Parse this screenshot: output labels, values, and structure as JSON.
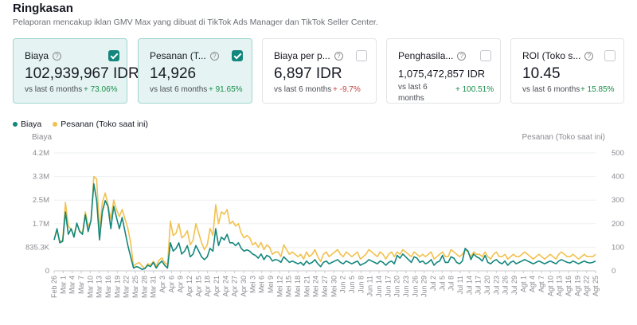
{
  "header": {
    "title": "Ringkasan",
    "subtitle": "Pelaporan mencakup iklan GMV Max yang dibuat di TikTok Ads Manager dan TikTok Seller Center."
  },
  "cards": [
    {
      "label": "Biaya",
      "value": "102,939,967 IDR",
      "compare": "vs last 6 months",
      "delta": "+ 73.06%",
      "trend": "up",
      "checked": true
    },
    {
      "label": "Pesanan (T...",
      "value": "14,926",
      "compare": "vs last 6 months",
      "delta": "+ 91.65%",
      "trend": "up",
      "checked": true
    },
    {
      "label": "Biaya per p...",
      "value": "6,897 IDR",
      "compare": "vs last 6 months",
      "delta": "+ -9.7%",
      "trend": "down",
      "checked": false
    },
    {
      "label": "Penghasila...",
      "value": "1,075,472,857 IDR",
      "compare": "vs last 6 months",
      "delta": "+ 100.51%",
      "trend": "up",
      "checked": false
    },
    {
      "label": "ROI (Toko s...",
      "value": "10.45",
      "compare": "vs last 6 months",
      "delta": "+ 15.85%",
      "trend": "up",
      "checked": false
    }
  ],
  "legend": {
    "series1": "Biaya",
    "series2": "Pesanan (Toko saat ini)"
  },
  "colors": {
    "biaya": "#13877c",
    "pesanan": "#f2c14e",
    "accent": "#13877c"
  },
  "chart_data": {
    "type": "line",
    "ylabel_left": "Biaya",
    "ylabel_right": "Pesanan (Toko saat ini)",
    "yticks_left": [
      "0",
      "835.3K",
      "1.7M",
      "2.5M",
      "3.3M",
      "4.2M"
    ],
    "yticks_right": [
      "0",
      "100",
      "200",
      "300",
      "400",
      "500"
    ],
    "ylim_left": [
      0,
      4200000
    ],
    "ylim_right": [
      0,
      500
    ],
    "x_tick_labels": [
      "Feb 26",
      "Mar 1",
      "Mar 4",
      "Mar 7",
      "Mar 10",
      "Mar 13",
      "Mar 16",
      "Mar 19",
      "Mar 22",
      "Mar 25",
      "Mar 28",
      "Mar 31",
      "Apr 3",
      "Apr 6",
      "Apr 9",
      "Apr 12",
      "Apr 15",
      "Apr 18",
      "Apr 21",
      "Apr 24",
      "Apr 27",
      "Apr 30",
      "Mei 3",
      "Mei 6",
      "Mei 9",
      "Mei 12",
      "Mei 15",
      "Mei 18",
      "Mei 21",
      "Mei 24",
      "Mei 27",
      "Mei 30",
      "Jun 2",
      "Jun 5",
      "Jun 8",
      "Jun 11",
      "Jun 14",
      "Jun 17",
      "Jun 20",
      "Jun 23",
      "Jun 26",
      "Jun 29",
      "Jul 2",
      "Jul 5",
      "Jul 8",
      "Jul 11",
      "Jul 14",
      "Jul 17",
      "Jul 20",
      "Jul 23",
      "Jul 26",
      "Jul 29",
      "Agt 1",
      "Agt 4",
      "Agt 7",
      "Agt 10",
      "Agt 13",
      "Agt 16",
      "Agt 19",
      "Agt 22",
      "Agt 25"
    ],
    "grid": true,
    "series": [
      {
        "name": "Biaya",
        "axis": "left",
        "values": [
          1100000,
          1500000,
          1000000,
          1050000,
          2100000,
          1300000,
          1500000,
          1200000,
          1700000,
          1400000,
          1300000,
          2000000,
          1400000,
          1800000,
          3100000,
          2500000,
          1100000,
          2100000,
          2500000,
          2300000,
          1500000,
          2300000,
          1900000,
          1500000,
          1900000,
          1400000,
          900000,
          500000,
          100000,
          150000,
          120000,
          50000,
          80000,
          200000,
          150000,
          300000,
          100000,
          250000,
          350000,
          200000,
          100000,
          1000000,
          700000,
          800000,
          1000000,
          600000,
          700000,
          900000,
          500000,
          600000,
          900000,
          700000,
          500000,
          400000,
          500000,
          800000,
          700000,
          1500000,
          900000,
          1200000,
          1100000,
          1300000,
          1000000,
          1000000,
          900000,
          1000000,
          800000,
          700000,
          750000,
          700000,
          600000,
          550000,
          450000,
          600000,
          400000,
          550000,
          500000,
          350000,
          400000,
          380000,
          300000,
          500000,
          400000,
          300000,
          350000,
          300000,
          250000,
          300000,
          200000,
          350000,
          250000,
          300000,
          400000,
          250000,
          150000,
          300000,
          350000,
          250000,
          300000,
          350000,
          400000,
          300000,
          250000,
          350000,
          300000,
          250000,
          300000,
          350000,
          200000,
          250000,
          300000,
          400000,
          350000,
          300000,
          250000,
          350000,
          300000,
          200000,
          300000,
          350000,
          250000,
          550000,
          450000,
          600000,
          500000,
          400000,
          300000,
          500000,
          450000,
          300000,
          350000,
          250000,
          300000,
          400000,
          200000,
          300000,
          350000,
          550000,
          300000,
          300000,
          500000,
          450000,
          300000,
          250000,
          350000,
          800000,
          700000,
          400000,
          600000,
          500000,
          450000,
          350000,
          550000,
          300000,
          250000,
          350000,
          400000,
          300000,
          250000,
          350000,
          200000,
          300000,
          350000,
          250000,
          300000,
          350000,
          400000,
          350000,
          300000,
          250000,
          300000,
          350000,
          300000,
          250000,
          300000,
          350000,
          300000,
          250000,
          350000,
          400000,
          350000,
          300000,
          280000,
          350000,
          300000,
          250000,
          300000,
          350000,
          300000,
          280000,
          300000,
          350000
        ]
      },
      {
        "name": "Pesanan (Toko saat ini)",
        "axis": "right",
        "values": [
          135,
          170,
          125,
          130,
          290,
          190,
          175,
          150,
          200,
          170,
          160,
          250,
          190,
          210,
          400,
          390,
          170,
          290,
          330,
          280,
          220,
          300,
          260,
          230,
          260,
          220,
          180,
          120,
          20,
          30,
          35,
          20,
          10,
          30,
          25,
          40,
          20,
          45,
          55,
          35,
          25,
          210,
          150,
          160,
          200,
          140,
          150,
          170,
          110,
          130,
          200,
          160,
          120,
          90,
          110,
          180,
          150,
          280,
          200,
          250,
          240,
          260,
          200,
          210,
          190,
          200,
          160,
          140,
          150,
          140,
          110,
          120,
          100,
          120,
          90,
          110,
          100,
          70,
          80,
          80,
          60,
          110,
          90,
          70,
          80,
          70,
          60,
          70,
          50,
          80,
          60,
          70,
          90,
          60,
          40,
          70,
          80,
          60,
          70,
          80,
          90,
          70,
          60,
          80,
          70,
          60,
          70,
          80,
          50,
          60,
          70,
          90,
          80,
          70,
          60,
          80,
          70,
          50,
          70,
          80,
          60,
          80,
          70,
          90,
          80,
          70,
          60,
          80,
          70,
          60,
          70,
          60,
          70,
          80,
          50,
          60,
          70,
          80,
          60,
          60,
          90,
          80,
          70,
          60,
          70,
          90,
          80,
          60,
          80,
          70,
          70,
          60,
          80,
          60,
          50,
          70,
          80,
          60,
          60,
          70,
          50,
          60,
          70,
          60,
          60,
          70,
          80,
          70,
          60,
          50,
          60,
          70,
          60,
          50,
          60,
          70,
          60,
          50,
          70,
          80,
          70,
          60,
          60,
          70,
          60,
          50,
          60,
          70,
          60,
          60,
          60,
          70
        ]
      }
    ]
  }
}
